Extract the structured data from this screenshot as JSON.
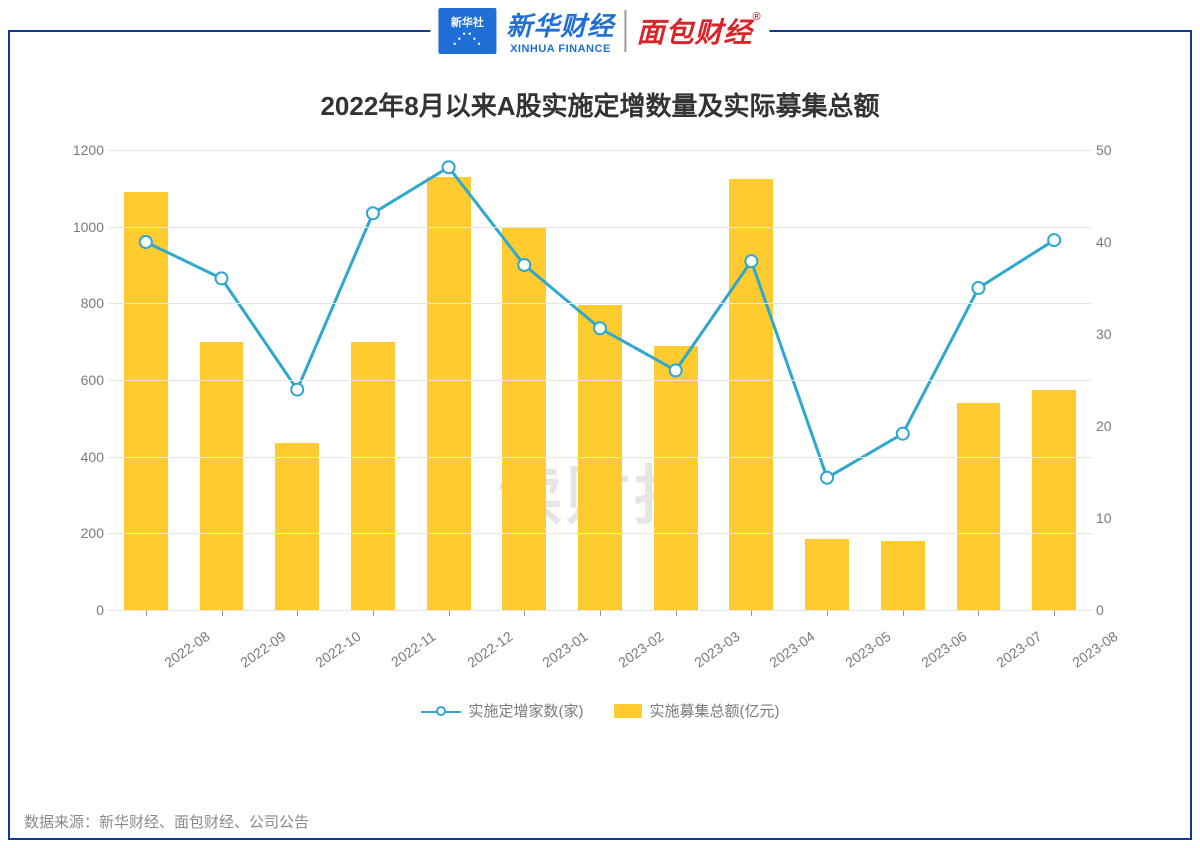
{
  "logos": {
    "xinhua_badge_top": "新华社",
    "xinhua_cn": "新华财经",
    "xinhua_en": "XINHUA FINANCE",
    "mianbao": "面包财经"
  },
  "chart": {
    "type": "bar+line",
    "title": "2022年8月以来A股实施定增数量及实际募集总额",
    "title_fontsize": 26,
    "watermark": "读财报",
    "background_color": "#ffffff",
    "grid_color": "#e6e6e6",
    "categories": [
      "2022-08",
      "2022-09",
      "2022-10",
      "2022-11",
      "2022-12",
      "2023-01",
      "2023-02",
      "2023-03",
      "2023-04",
      "2023-05",
      "2023-06",
      "2023-07",
      "2023-08"
    ],
    "bars": {
      "label": "实施募集总额(亿元)",
      "color": "#ffcb2e",
      "axis": "left",
      "values": [
        1090,
        700,
        435,
        700,
        1130,
        1000,
        795,
        690,
        1125,
        185,
        180,
        540,
        575
      ],
      "bar_width_frac": 0.58
    },
    "line": {
      "label": "实施定增家数(家)",
      "color": "#2ea8cf",
      "line_width": 3,
      "marker": "circle",
      "marker_size": 6,
      "marker_fill": "#ffffff",
      "axis": "left_plotted",
      "values": [
        960,
        865,
        575,
        1035,
        1155,
        900,
        735,
        625,
        910,
        345,
        460,
        840,
        965
      ]
    },
    "y_left": {
      "min": 0,
      "max": 1200,
      "step": 200,
      "ticks": [
        0,
        200,
        400,
        600,
        800,
        1000,
        1200
      ]
    },
    "y_right": {
      "min": 0,
      "max": 50,
      "step": 10,
      "ticks": [
        0,
        10,
        20,
        30,
        40,
        50
      ]
    },
    "label_fontsize": 14,
    "label_color": "#7a7a7a"
  },
  "legend": {
    "line_label": "实施定增家数(家)",
    "bar_label": "实施募集总额(亿元)"
  },
  "source": "数据来源：新华财经、面包财经、公司公告",
  "frame_border_color": "#0a3b8f"
}
